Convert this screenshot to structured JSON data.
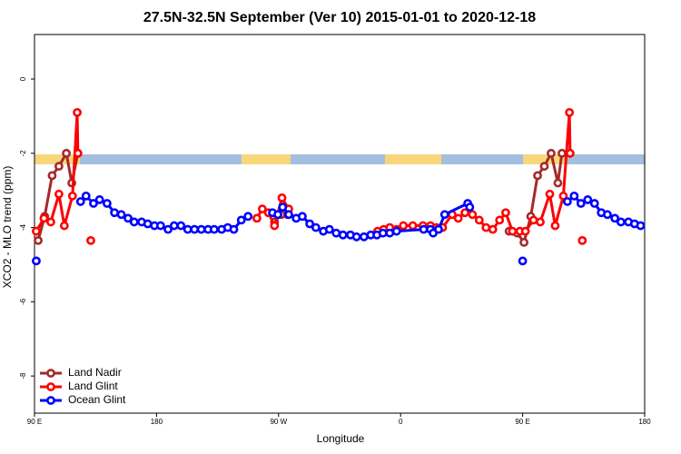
{
  "chart_data": {
    "type": "line",
    "title": "27.5N-32.5N September (Ver 10)   2015-01-01 to 2020-12-18",
    "x_label": "Longitude",
    "y_label": "XCO2 - MLO trend (ppm)",
    "xlim": [
      90,
      540
    ],
    "ylim": [
      -9,
      1.2
    ],
    "xticks": [
      {
        "value": 90,
        "label": "90 E"
      },
      180,
      {
        "value": 270,
        "label": "90 W"
      },
      {
        "value": 360,
        "label": "0"
      },
      {
        "value": 450,
        "label": "90 E"
      },
      {
        "value": 540,
        "label": "180"
      }
    ],
    "yticks": [
      0,
      -2,
      -4,
      -6,
      -8
    ],
    "legend": "bottom-left",
    "series": [
      {
        "name": "Land Nadir",
        "color": "#a52a2a",
        "x": [
          92.7,
          97.5,
          103,
          108,
          113.5,
          117.5,
          122,
          200,
          267,
          272,
          276.5,
          350,
          440,
          446,
          451,
          456,
          461,
          466,
          471,
          476,
          479
        ],
        "values": [
          -4.35,
          -3.7,
          -2.6,
          -2.35,
          -2.0,
          -2.8,
          -2.0,
          null,
          -3.85,
          -3.65,
          -3.65,
          null,
          -4.1,
          -4.15,
          -4.4,
          -3.7,
          -2.6,
          -2.35,
          -2.0,
          -2.8,
          -2.0
        ]
      },
      {
        "name": "Land Glint",
        "color": "#ff0000",
        "x": [
          91.3,
          97,
          102,
          108,
          112,
          118,
          121.5,
          122,
          125,
          131.5,
          200,
          254,
          258,
          262.5,
          267,
          272.5,
          277.5,
          310,
          343,
          347.5,
          352,
          357,
          362,
          369,
          376.5,
          382,
          386.5,
          391,
          398,
          402.5,
          407.5,
          413,
          418,
          423,
          428,
          433,
          437.5,
          442.5,
          448,
          452,
          458,
          463,
          470,
          474,
          480,
          484.5,
          485,
          488,
          494
        ],
        "values": [
          -4.1,
          -3.75,
          -3.85,
          -3.1,
          -3.95,
          -3.15,
          -0.9,
          -2.0,
          null,
          -4.35,
          null,
          -3.75,
          -3.5,
          -3.6,
          -3.95,
          -3.2,
          -3.5,
          null,
          -4.1,
          -4.05,
          -4.0,
          -4.05,
          -3.95,
          -3.95,
          -3.95,
          -3.95,
          -4.0,
          -4.0,
          -3.65,
          -3.75,
          -3.6,
          -3.65,
          -3.8,
          -4.0,
          -4.05,
          -3.8,
          -3.6,
          -4.1,
          -4.1,
          -4.1,
          -3.8,
          -3.85,
          -3.1,
          -3.95,
          -3.15,
          -0.9,
          -2.0,
          null,
          -4.35
        ]
      },
      {
        "name": "Ocean Glint",
        "color": "#0000ff",
        "x": [
          91.3,
          110,
          124,
          128,
          133.5,
          138,
          143.5,
          149,
          154,
          159,
          163.5,
          169,
          173.5,
          178.5,
          183,
          188.5,
          193,
          198,
          203,
          208,
          213,
          218,
          222.5,
          228,
          232.5,
          237,
          242.5,
          247.5,
          256,
          265.5,
          269.5,
          273,
          277.5,
          283,
          287.5,
          293,
          297.5,
          303,
          307.5,
          312.5,
          317.5,
          323,
          327.5,
          333,
          338,
          342.5,
          347,
          352,
          357,
          377,
          382,
          384,
          388,
          392.5,
          409.5,
          411,
          430,
          450,
          470,
          483,
          488,
          493,
          498,
          503,
          508,
          512.5,
          518,
          522.5,
          528,
          532.5,
          537
        ],
        "values": [
          -4.9,
          null,
          -3.3,
          -3.15,
          -3.35,
          -3.25,
          -3.35,
          -3.6,
          -3.65,
          -3.75,
          -3.85,
          -3.85,
          -3.9,
          -3.95,
          -3.95,
          -4.05,
          -3.95,
          -3.95,
          -4.05,
          -4.05,
          -4.05,
          -4.05,
          -4.05,
          -4.05,
          -4.0,
          -4.05,
          -3.8,
          -3.7,
          null,
          -3.6,
          -3.65,
          -3.45,
          -3.65,
          -3.75,
          -3.7,
          -3.9,
          -4.0,
          -4.1,
          -4.05,
          -4.15,
          -4.2,
          -4.2,
          -4.25,
          -4.25,
          -4.2,
          -4.2,
          -4.15,
          -4.15,
          -4.1,
          -4.05,
          -4.05,
          -4.15,
          -4.05,
          -3.65,
          -3.35,
          -3.45,
          null,
          -4.9,
          null,
          -3.3,
          -3.15,
          -3.35,
          -3.25,
          -3.35,
          -3.6,
          -3.65,
          -3.75,
          -3.85,
          -3.85,
          -3.9,
          -3.95
        ]
      }
    ]
  }
}
